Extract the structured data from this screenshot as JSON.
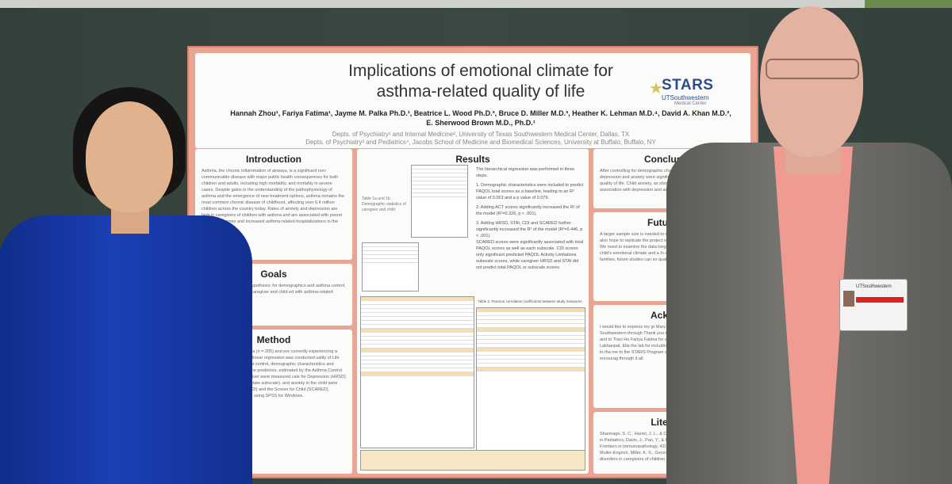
{
  "poster": {
    "title_line1": "Implications of emotional climate for",
    "title_line2": "asthma-related quality of life",
    "authors_line1": "Hannah Zhou¹, Fariya Fatima¹, Jayme M. Palka Ph.D.¹, Beatrice L. Wood Ph.D.³, Bruce D. Miller M.D.³, Heather K. Lehman M.D.⁴, David A. Khan M.D.²,",
    "authors_line2": "E. Sherwood Brown M.D., Ph.D.¹",
    "affiliation1": "Depts. of Psychiatry¹ and Internal Medicine², University of Texas Southwestern Medical Center, Dallas, TX",
    "affiliation2": "Depts. of Psychiatry³ and Pediatrics⁴, Jacobs School of Medicine and Biomedical Sciences, University at Buffalo, Buffalo, NY",
    "logo": {
      "main": "STARS",
      "sub": "UTSouthwestern",
      "sub2": "Medical Center"
    },
    "sections": {
      "introduction": "Introduction",
      "goals": "Goals",
      "method": "Method",
      "results": "Results",
      "conclusions": "Conclusions",
      "future": "Future Dire",
      "acknowledgments": "Acknowle",
      "literature": "Literature"
    },
    "results_text": [
      "The hierarchical regression was performed in three steps.",
      "1. Demographic characteristics were included to predict PAQOL total scores as a baseline, leading to an R² value of 0.053 and a p value of 0.079.",
      "2. Adding ACT scores significantly increased the R² of the model (R²=0.326, p < .001).",
      "3. Adding HRSD, STAI, CDI and SCARED further significantly increased the R² of the model (R²=0.446, p < .001).",
      "SCARED scores were significantly associated with total PAQOL scores as well as each subscale. CDI scores only significant predicted PAQOL Activity Limitations subscale scores, while caregiver HRSD and STAI did not predict total PAQOL or subscale scores."
    ],
    "intro_text": "Asthma, the chronic inflammation of airways, is a significant non-communicable disease with major public health consequences for both children and adults, including high morbidity, and mortality in severe cases. Despite gains in the understanding of the pathophysiology of asthma and the emergence of new treatment options, asthma remains the most common chronic disease of childhood, affecting over 6.4 million children across the country today. Rates of anxiety and depression are high in caregivers of children with asthma and are associated with poorer asthma outcomes and increased asthma-related hospitalizations in the past.",
    "goals_text": "investigate the following hypothesis: for demographics and asthma control, symptom severity in both caregiver and child ed with asthma-related quality of life.",
    "method_text": "7-17 with persistent asthma (n = 205) and ere currently experiencing a major depressive archical linear regression was conducted uality of Life (PAQOL) as the dependent control, demographic characteristics and severity of depression of the predictors. estimated by the Asthma Control Test d anxiety in the caregiver were measured cale for Depression (HRSD) and the iety Scale (STAI, state subscale). and anxiety in the child were measured by Inventory (CDI) and the Screen for Child (SCARED), respectively. es conducted using SPSS for Windows.",
    "conclusions_text": "After controlling for demographic characteristics and asthma control, depression and anxiety were significantly associated with asthma-related quality of life. Child anxiety, as shown demonstrated the strongest association with depression and anxiety scales that were adm",
    "future_text": "A larger sample size is needed to exa socioeconomic factors on asthma re also hope to replicate the project w asthma whose caregivers do not hav We need to examine the data longi study to assess how changes in car the child's emotional climate and a In order to provide better, more in and families, future studies can ex quality of life assessments for ca",
    "ack_text": "I would like to express my gr Mary Leyendecker, Lynn Tam, an explore UT Southwestern through Thank you to Dr. Brown for mento the research field and to Traci Ho Fariya Fatima for allowing me to to Josh Kaitt, Shuchi Lakhanpal, Ella the lab for including me in other p Additionally, I would like to tha me to the STARS Program and provi thank you to my family for encourag through it all.",
    "lit_text": "Sharmage, S. C., Harrel, J. L., & Clothier, R. children and adults. Frontiers in Pediatrics, Davis, J., Pan, Y., & Urquiz, A. A. (2019). Asthm factors. Frontiers in Immunopathology, 42(1): Brown, E. S., Gan, V., Jeffress, J., Muller-Engrich, Miller, K. S., Gvozdich, R., & Ruth, R. J. (2006). Psy and disorders in caregivers of children with asthm",
    "fig_caption": "Table 1a and 1b. Demographic statistics of caregiver and child",
    "table_caption": "Table 2. Pearson correlation coefficients between study measures"
  },
  "badge": {
    "label": "UTSouthwestern",
    "stripe": "#dd2222"
  },
  "colors": {
    "poster_frame": "#e9a594",
    "title": "#333333",
    "logo_blue": "#2d4c8d",
    "woman_shirt": "#1b3fb5",
    "man_shirt": "#ef9b92",
    "man_jacket": "#76746f"
  }
}
